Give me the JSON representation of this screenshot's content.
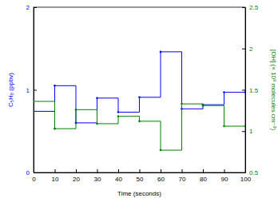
{
  "chart_data": {
    "type": "line",
    "x_label": "Time (seconds)",
    "y_label": "C₅H₈ (ppbv)",
    "y2_label": "[OH] (× 10⁸ molecules cm⁻³)",
    "x": [
      0,
      10,
      20,
      30,
      40,
      50,
      60,
      70,
      80,
      90,
      100
    ],
    "series": [
      {
        "name": "C₅H₈",
        "color": "#0000ff",
        "line_style": "step",
        "marker": "dot",
        "values": [
          0.74,
          1.05,
          0.6,
          0.9,
          0.73,
          0.91,
          1.46,
          0.77,
          0.82,
          0.97,
          0.97
        ]
      },
      {
        "name": "[OH]",
        "color": "#008000",
        "line_style": "step",
        "marker": "dot",
        "axis": "y2",
        "values": [
          1.36,
          1.03,
          1.26,
          1.09,
          1.18,
          1.12,
          0.77,
          1.33,
          1.31,
          1.06,
          1.06
        ]
      }
    ],
    "xlim": [
      0,
      100
    ],
    "xticks": [
      0,
      10,
      20,
      30,
      40,
      50,
      60,
      70,
      80,
      90,
      100
    ],
    "ylim": [
      0,
      2
    ],
    "yticks": [
      0,
      1,
      2
    ],
    "y2lim": [
      0.5,
      2.5
    ],
    "y2ticks": [
      0.5,
      1,
      1.5,
      2,
      2.5
    ]
  }
}
